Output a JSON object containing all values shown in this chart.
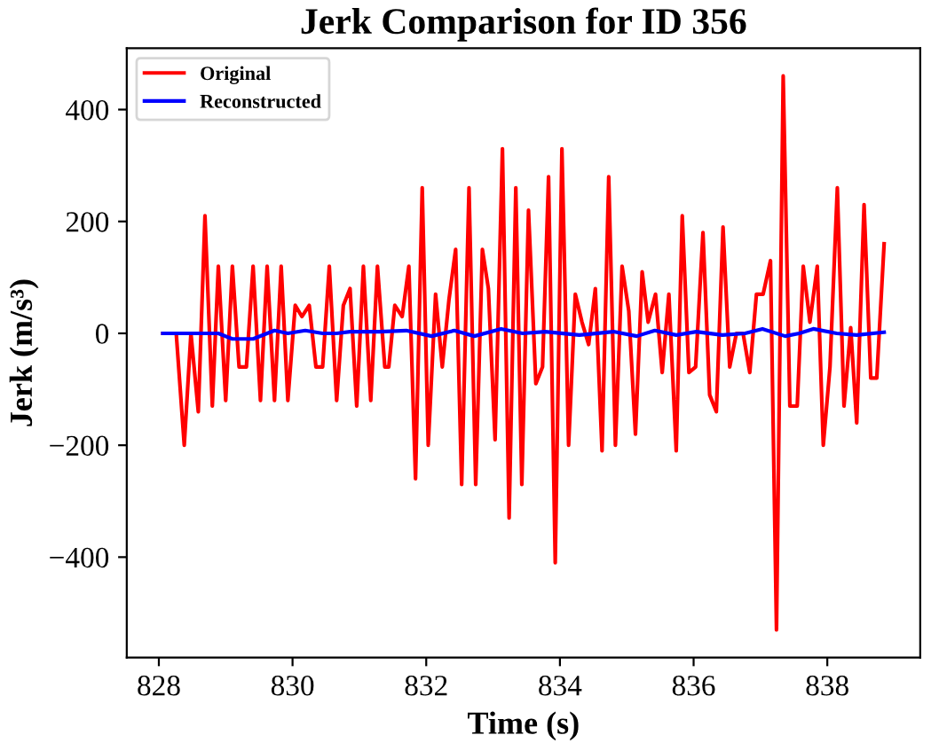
{
  "chart_data": {
    "type": "line",
    "title": "Jerk Comparison for ID 356",
    "xlabel": "Time (s)",
    "ylabel": "Jerk (m/s³)",
    "xlim": [
      827.52,
      839.39
    ],
    "ylim": [
      -579.5,
      509.5
    ],
    "xticks": [
      828,
      830,
      832,
      834,
      836,
      838
    ],
    "yticks": [
      {
        "value": -400,
        "label": "−400"
      },
      {
        "value": -200,
        "label": "−200"
      },
      0,
      200,
      400
    ],
    "grid": false,
    "legend": "top left",
    "line_style": "solid",
    "marker": "none",
    "series": [
      {
        "name": "Original",
        "color": "#ff0000",
        "x": [
          828.06,
          828.26,
          828.38,
          828.48,
          828.59,
          828.69,
          828.8,
          828.89,
          829.0,
          829.1,
          829.2,
          829.31,
          829.41,
          829.52,
          829.62,
          829.73,
          829.83,
          829.93,
          830.04,
          830.14,
          830.25,
          830.35,
          830.45,
          830.55,
          830.66,
          830.76,
          830.86,
          830.96,
          831.06,
          831.17,
          831.27,
          831.38,
          831.44,
          831.53,
          831.64,
          831.74,
          831.84,
          831.94,
          832.03,
          832.14,
          832.24,
          832.34,
          832.44,
          832.53,
          832.64,
          832.74,
          832.84,
          832.93,
          833.03,
          833.14,
          833.24,
          833.34,
          833.43,
          833.53,
          833.64,
          833.74,
          833.83,
          833.93,
          834.03,
          834.13,
          834.23,
          834.33,
          834.43,
          834.53,
          834.63,
          834.73,
          834.83,
          834.93,
          835.03,
          835.13,
          835.23,
          835.32,
          835.43,
          835.53,
          835.63,
          835.74,
          835.83,
          835.93,
          836.03,
          836.14,
          836.24,
          836.34,
          836.44,
          836.54,
          836.64,
          836.74,
          836.84,
          836.94,
          837.04,
          837.15,
          837.24,
          837.34,
          837.44,
          837.55,
          837.64,
          837.74,
          837.85,
          837.94,
          838.04,
          838.15,
          838.25,
          838.35,
          838.44,
          838.55,
          838.65,
          838.74,
          838.85
        ],
        "values": [
          0,
          0,
          -200,
          0,
          -140,
          210,
          -130,
          120,
          -120,
          120,
          -60,
          -60,
          120,
          -120,
          120,
          -120,
          120,
          -120,
          50,
          30,
          50,
          -60,
          -60,
          120,
          -120,
          50,
          80,
          -130,
          120,
          -120,
          120,
          -60,
          -60,
          50,
          30,
          120,
          -260,
          260,
          -200,
          70,
          -60,
          60,
          150,
          -270,
          260,
          -270,
          150,
          80,
          -190,
          330,
          -330,
          260,
          -270,
          220,
          -90,
          -60,
          280,
          -410,
          330,
          -200,
          70,
          20,
          -20,
          80,
          -210,
          280,
          -200,
          120,
          40,
          -180,
          110,
          20,
          70,
          -70,
          70,
          -210,
          210,
          -70,
          -60,
          180,
          -110,
          -140,
          190,
          -60,
          0,
          0,
          -70,
          70,
          70,
          130,
          -530,
          460,
          -130,
          -130,
          120,
          20,
          120,
          -200,
          -60,
          260,
          -130,
          10,
          -160,
          230,
          -80,
          -80,
          160
        ]
      },
      {
        "name": "Reconstructed",
        "color": "#0000ff",
        "x": [
          828.06,
          828.89,
          829.1,
          829.41,
          829.73,
          829.93,
          830.19,
          830.45,
          830.66,
          830.86,
          831.3,
          831.7,
          832.08,
          832.42,
          832.72,
          833.12,
          833.44,
          833.78,
          834.29,
          834.8,
          835.15,
          835.42,
          835.74,
          836.04,
          836.43,
          836.77,
          837.03,
          837.37,
          837.58,
          837.79,
          838.14,
          838.44,
          838.85
        ],
        "values": [
          0,
          0,
          -10,
          -10,
          5,
          0,
          5,
          0,
          0,
          3,
          3,
          5,
          -5,
          5,
          -5,
          8,
          0,
          3,
          -3,
          3,
          -5,
          5,
          -3,
          3,
          -3,
          0,
          8,
          -5,
          0,
          8,
          0,
          -3,
          2
        ]
      }
    ]
  }
}
